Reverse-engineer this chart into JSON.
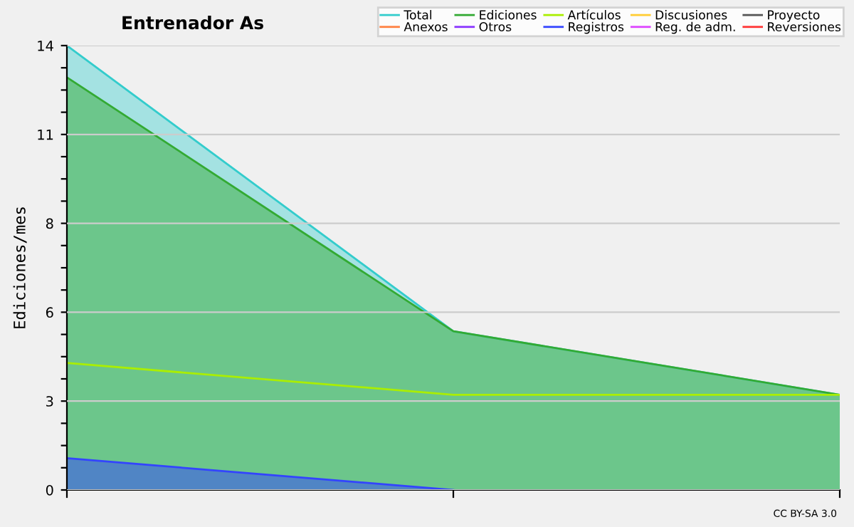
{
  "chart_data": {
    "type": "area",
    "title": "Entrenador As",
    "ylabel": "Ediciones/mes",
    "categories": [
      null,
      null,
      null
    ],
    "series": [
      {
        "name": "Total",
        "color": "#33cccc",
        "values": [
          14,
          5,
          3
        ]
      },
      {
        "name": "Ediciones",
        "color": "#33aa33",
        "values": [
          13,
          5,
          3
        ]
      },
      {
        "name": "Artículos",
        "color": "#aaee00",
        "values": [
          4,
          3,
          3
        ],
        "type": "line"
      },
      {
        "name": "Discusiones",
        "color": "#ffcc33",
        "values": [
          null,
          null,
          null
        ]
      },
      {
        "name": "Proyecto",
        "color": "#555555",
        "values": [
          null,
          null,
          null
        ]
      },
      {
        "name": "Anexos",
        "color": "#ff8040",
        "values": [
          null,
          null,
          null
        ]
      },
      {
        "name": "Otros",
        "color": "#8833ff",
        "values": [
          null,
          null,
          null
        ]
      },
      {
        "name": "Registros",
        "color": "#3344ff",
        "values": [
          1,
          0,
          null
        ]
      },
      {
        "name": "Reg. de adm.",
        "color": "#dd44ff",
        "values": [
          null,
          null,
          null
        ]
      },
      {
        "name": "Reversiones",
        "color": "#ff3333",
        "values": [
          null,
          null,
          null
        ]
      }
    ],
    "ylim": [
      0,
      14
    ],
    "yticks": [
      0,
      {
        "value": 0.7,
        "label": null
      },
      {
        "value": 1.4,
        "label": null
      },
      {
        "value": 2.1,
        "label": null
      },
      {
        "value": 2.8,
        "label": "3"
      },
      {
        "value": 3.5,
        "label": null
      },
      {
        "value": 4.2,
        "label": null
      },
      {
        "value": 4.9,
        "label": null
      },
      {
        "value": 5.6,
        "label": "6"
      },
      {
        "value": 6.3,
        "label": null
      },
      {
        "value": 7.0,
        "label": null
      },
      {
        "value": 7.7,
        "label": null
      },
      {
        "value": 8.4,
        "label": "8"
      },
      {
        "value": 9.1,
        "label": null
      },
      {
        "value": 9.8,
        "label": null
      },
      {
        "value": 10.5,
        "label": null
      },
      {
        "value": 11.2,
        "label": "11"
      },
      {
        "value": 11.9,
        "label": null
      },
      {
        "value": 12.6,
        "label": null
      },
      {
        "value": 13.3,
        "label": null
      },
      14
    ],
    "grid": "y",
    "legend": "top right",
    "annotations": [
      "CC BY-SA 3.0"
    ]
  }
}
